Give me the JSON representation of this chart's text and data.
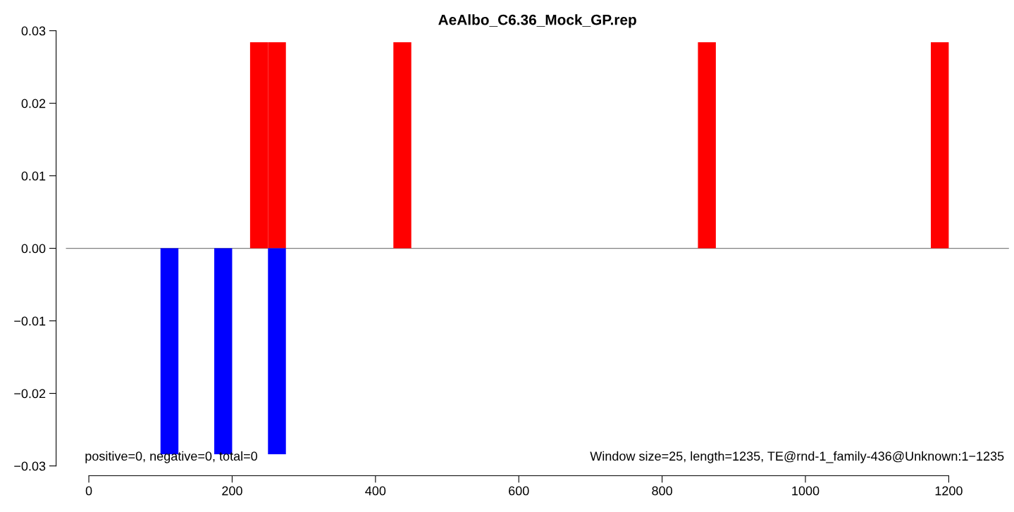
{
  "chart_data": {
    "type": "bar",
    "title": "AeAlbo_C6.36_Mock_GP.rep",
    "series": [
      {
        "color": "#ff0000",
        "x": [
          237.5,
          262.5,
          437.5,
          862.5,
          1187.5
        ],
        "values": [
          0.0284,
          0.0284,
          0.0284,
          0.0284,
          0.0284
        ]
      },
      {
        "color": "#0000ff",
        "x": [
          112.5,
          187.5,
          262.5
        ],
        "values": [
          -0.0284,
          -0.0284,
          -0.0284
        ]
      }
    ],
    "xlim": [
      -32,
      1284
    ],
    "ylim": [
      -0.03,
      0.03
    ],
    "xticks": [
      0,
      200,
      400,
      600,
      800,
      1000,
      1200
    ],
    "yticks": [
      {
        "value": -0.03,
        "label": "−0.03"
      },
      {
        "value": -0.02,
        "label": "−0.02"
      },
      {
        "value": -0.01,
        "label": "−0.01"
      },
      {
        "value": 0,
        "label": "0.00"
      },
      {
        "value": 0.01,
        "label": "0.01"
      },
      {
        "value": 0.02,
        "label": "0.02"
      },
      {
        "value": 0.03,
        "label": "0.03"
      }
    ],
    "ref_lines": [
      {
        "axis": "y",
        "value": 0,
        "color": "#808080"
      }
    ],
    "annotations": [
      "positive=0, negative=0, total=0",
      "Window size=25, length=1235, TE@rnd-1_family-436@Unknown:1−1235"
    ],
    "grid": false
  }
}
